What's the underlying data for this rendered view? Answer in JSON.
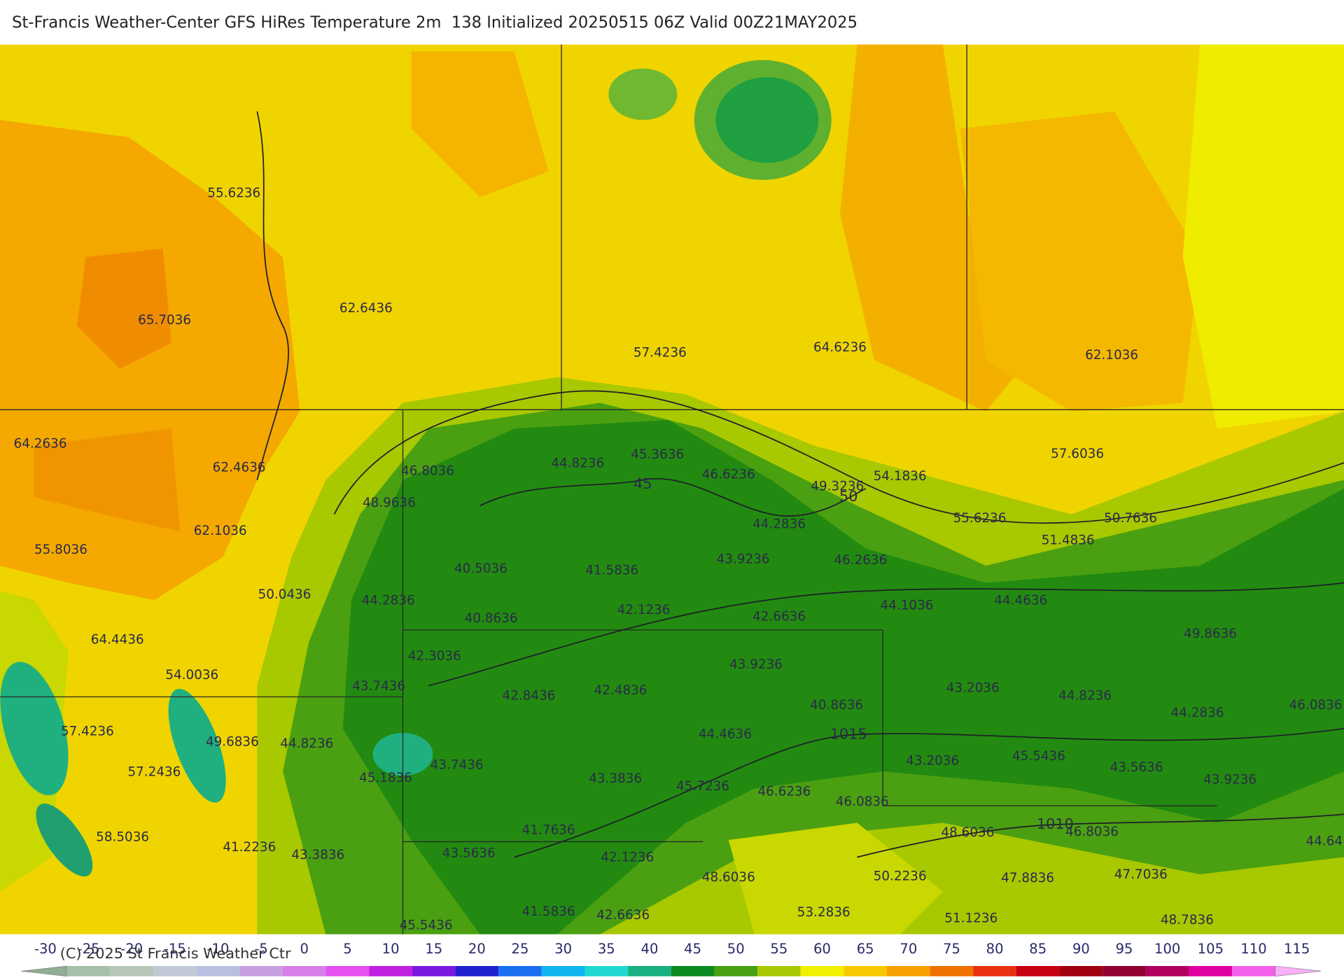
{
  "header": {
    "title": "St-Francis Weather-Center GFS HiRes Temperature 2m  138 Initialized 20250515 06Z Valid 00Z21MAY2025"
  },
  "map": {
    "temperature_labels": [
      "55.6236",
      "62.6436",
      "65.7036",
      "57.4236",
      "64.6236",
      "62.1036",
      "64.2636",
      "62.4636",
      "46.8036",
      "44.8236",
      "45.3636",
      "46.6236",
      "49.3236",
      "54.1836",
      "57.6036",
      "48.9636",
      "62.1036",
      "44.2836",
      "55.6236",
      "50.7636",
      "51.4836",
      "55.8036",
      "40.5036",
      "41.5836",
      "43.9236",
      "46.2636",
      "50.0436",
      "44.2836",
      "40.8636",
      "42.1236",
      "42.6636",
      "44.1036",
      "44.4636",
      "64.4436",
      "49.8636",
      "42.3036",
      "54.0036",
      "43.9236",
      "43.7436",
      "42.8436",
      "42.4836",
      "43.2036",
      "44.8236",
      "46.0836",
      "44.2836",
      "40.8636",
      "57.4236",
      "49.6836",
      "44.8236",
      "44.4636",
      "43.7436",
      "43.2036",
      "45.5436",
      "43.5636",
      "57.2436",
      "45.1836",
      "43.3836",
      "45.7236",
      "46.6236",
      "46.0836",
      "43.9236",
      "41.7636",
      "48.6036",
      "46.8036",
      "58.5036",
      "41.2236",
      "43.3836",
      "43.5636",
      "42.1236",
      "44.64",
      "48.6036",
      "50.2236",
      "47.8836",
      "47.7036",
      "41.5836",
      "42.6636",
      "53.2836",
      "51.1236",
      "48.7836",
      "45.5436"
    ],
    "contour_labels": [
      "45",
      "50",
      "1015",
      "1010"
    ]
  },
  "colorbar": {
    "ticks": [
      -30,
      -25,
      -20,
      -15,
      -10,
      -5,
      0,
      5,
      10,
      15,
      20,
      25,
      30,
      35,
      40,
      45,
      50,
      55,
      60,
      65,
      70,
      75,
      80,
      85,
      90,
      95,
      100,
      105,
      110,
      115
    ],
    "colors": [
      "#8fae95",
      "#a6bfaa",
      "#b5c6b8",
      "#c1c9d6",
      "#b9bfe0",
      "#c79fe0",
      "#d87ee8",
      "#e550f0",
      "#c020e0",
      "#7a18e0",
      "#2020d0",
      "#1a6ef0",
      "#10b4f0",
      "#20d8d0",
      "#18b080",
      "#0a8a20",
      "#48a010",
      "#a8c800",
      "#f0f000",
      "#f8c800",
      "#f8a000",
      "#f07000",
      "#e83010",
      "#c80010",
      "#a00010",
      "#900030",
      "#b00060",
      "#e000a0",
      "#f060e8",
      "#f8b0f8"
    ]
  },
  "footer": {
    "copyright": "(C) 2025 St Francis Weather Ctr"
  }
}
